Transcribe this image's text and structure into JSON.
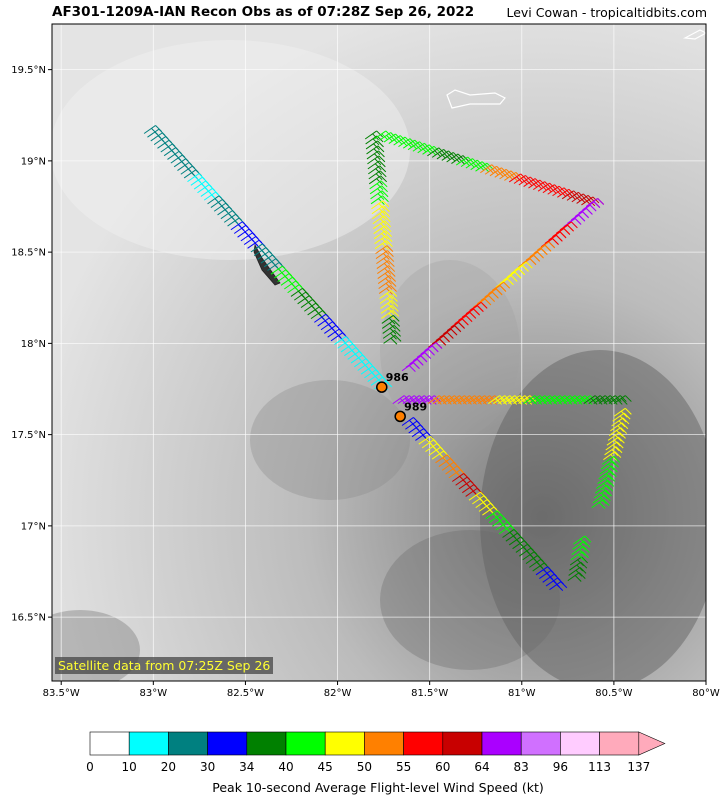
{
  "header": {
    "title": "AF301-1209A-IAN Recon Obs as of 07:28Z Sep 26, 2022",
    "credit": "Levi Cowan - tropicaltidbits.com"
  },
  "map": {
    "lon_range": [
      -83.55,
      80.0
    ],
    "lat_range": [
      16.15,
      19.75
    ],
    "lon_ticks": [
      {
        "v": -83.5,
        "t": "83.5°W"
      },
      {
        "v": -83.0,
        "t": "83°W"
      },
      {
        "v": -82.5,
        "t": "82.5°W"
      },
      {
        "v": -82.0,
        "t": "82°W"
      },
      {
        "v": -81.5,
        "t": "81.5°W"
      },
      {
        "v": -81.0,
        "t": "81°W"
      },
      {
        "v": -80.5,
        "t": "80.5°W"
      },
      {
        "v": -80.0,
        "t": "80°W"
      }
    ],
    "lat_ticks": [
      {
        "v": 16.5,
        "t": "16.5°N"
      },
      {
        "v": 17.0,
        "t": "17°N"
      },
      {
        "v": 17.5,
        "t": "17.5°N"
      },
      {
        "v": 18.0,
        "t": "18°N"
      },
      {
        "v": 18.5,
        "t": "18.5°N"
      },
      {
        "v": 19.0,
        "t": "19°N"
      },
      {
        "v": 19.5,
        "t": "19.5°N"
      }
    ],
    "satellite_note": "Satellite data from 07:25Z Sep 26",
    "pressure_obs": [
      {
        "lon": -81.76,
        "lat": 17.76,
        "label": "986"
      },
      {
        "lon": -81.66,
        "lat": 17.6,
        "label": "989"
      }
    ],
    "flight_legs": [
      {
        "from": [
          -83.05,
          19.15
        ],
        "to": [
          -81.8,
          17.75
        ],
        "colors": [
          "#008080",
          "#008080",
          "#00ffff",
          "#008080",
          "#0000ff",
          "#008080",
          "#00ff00",
          "#008000",
          "#0000ff",
          "#00ffff",
          "#00ffff"
        ]
      },
      {
        "from": [
          -81.85,
          19.12
        ],
        "to": [
          -81.75,
          18.0
        ],
        "colors": [
          "#008000",
          "#008000",
          "#00ff00",
          "#ffff00",
          "#ffff00",
          "#ff8000",
          "#ff8000",
          "#ffff00",
          "#008000"
        ]
      },
      {
        "from": [
          -81.8,
          19.12
        ],
        "to": [
          -80.65,
          18.75
        ],
        "colors": [
          "#00ff00",
          "#00ff00",
          "#008000",
          "#00ff00",
          "#ff8000",
          "#ff0000",
          "#ff0000",
          "#c80000"
        ]
      },
      {
        "from": [
          -80.65,
          18.75
        ],
        "to": [
          -81.65,
          17.85
        ],
        "colors": [
          "#aa00ff",
          "#ff0000",
          "#ff8000",
          "#ffff00",
          "#ff8000",
          "#ff0000",
          "#c80000",
          "#aa00ff"
        ]
      },
      {
        "from": [
          -81.7,
          17.67
        ],
        "to": [
          -80.5,
          17.67
        ],
        "colors": [
          "#aa00ff",
          "#ff8000",
          "#ff8000",
          "#ffff00",
          "#00ff00",
          "#00ff00",
          "#008000"
        ]
      },
      {
        "from": [
          -80.5,
          17.6
        ],
        "to": [
          -80.62,
          17.1
        ],
        "colors": [
          "#ffff00",
          "#ffff00",
          "#00ff00",
          "#00ff00"
        ]
      },
      {
        "from": [
          -81.65,
          17.55
        ],
        "to": [
          -80.85,
          16.65
        ],
        "colors": [
          "#0000ff",
          "#ffff00",
          "#ff8000",
          "#c80000",
          "#ffff00",
          "#00ff00",
          "#008000",
          "#008000",
          "#0000ff"
        ]
      },
      {
        "from": [
          -80.75,
          16.7
        ],
        "to": [
          -80.72,
          16.9
        ],
        "colors": [
          "#008000",
          "#00ff00"
        ]
      }
    ]
  },
  "colorbar": {
    "title": "Peak 10-second Average Flight-level Wind Speed (kt)",
    "bins": [
      {
        "color": "#ffffff",
        "label": "0"
      },
      {
        "color": "#00ffff",
        "label": "10"
      },
      {
        "color": "#008080",
        "label": "20"
      },
      {
        "color": "#0000ff",
        "label": "30"
      },
      {
        "color": "#008000",
        "label": "34"
      },
      {
        "color": "#00ff00",
        "label": "40"
      },
      {
        "color": "#ffff00",
        "label": "45"
      },
      {
        "color": "#ff8000",
        "label": "50"
      },
      {
        "color": "#ff0000",
        "label": "55"
      },
      {
        "color": "#c80000",
        "label": "60"
      },
      {
        "color": "#aa00ff",
        "label": "64"
      },
      {
        "color": "#d070ff",
        "label": "83"
      },
      {
        "color": "#ffccff",
        "label": "96"
      },
      {
        "color": "#ffaabb",
        "label": "113"
      }
    ],
    "end_label": "137"
  }
}
